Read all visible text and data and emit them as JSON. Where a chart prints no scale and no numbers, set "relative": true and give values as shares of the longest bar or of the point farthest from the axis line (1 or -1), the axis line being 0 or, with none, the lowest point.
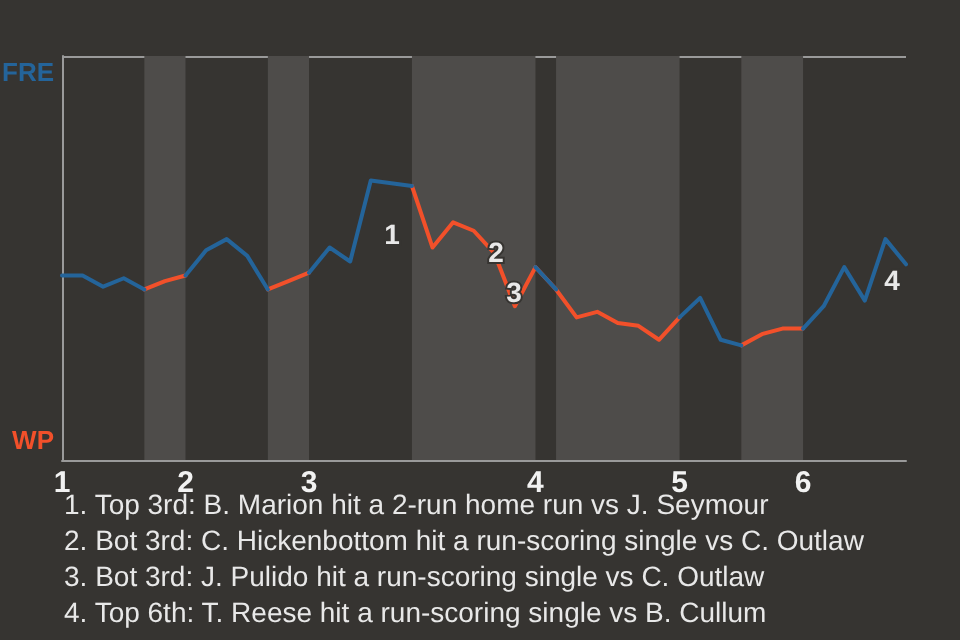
{
  "chart_data": {
    "type": "line",
    "relative": true,
    "categories": [
      "1",
      null,
      null,
      null,
      null,
      null,
      "2",
      null,
      null,
      null,
      null,
      null,
      "3",
      null,
      null,
      null,
      null,
      null,
      null,
      null,
      null,
      null,
      null,
      "4",
      null,
      null,
      null,
      null,
      null,
      null,
      "5",
      null,
      null,
      null,
      null,
      null,
      "6",
      null,
      null,
      null,
      null,
      null
    ],
    "series": [
      {
        "color": "#24649a",
        "values": [
          0.66,
          0.66,
          0.62,
          0.65,
          0.61,
          null,
          0.66,
          0.75,
          0.79,
          0.73,
          0.61,
          null,
          0.67,
          0.76,
          0.71,
          1,
          0.99,
          0.98,
          null,
          null,
          null,
          null,
          null,
          0.69,
          0.61,
          null,
          null,
          null,
          null,
          null,
          0.51,
          0.58,
          0.43,
          0.41,
          null,
          null,
          0.47,
          0.55,
          0.69,
          0.57,
          0.79,
          0.7
        ]
      },
      {
        "color": "#f2502a",
        "values": [
          null,
          null,
          null,
          null,
          0.61,
          0.64,
          0.66,
          null,
          null,
          null,
          0.61,
          0.64,
          0.67,
          null,
          null,
          null,
          null,
          0.98,
          0.76,
          0.85,
          0.82,
          0.74,
          0.55,
          0.69,
          0.61,
          0.51,
          0.53,
          0.49,
          0.48,
          0.43,
          0.51,
          null,
          null,
          0.41,
          0.45,
          0.47,
          0.47,
          null,
          null,
          null,
          null,
          null
        ]
      }
    ],
    "annotations": [
      "FRE",
      "WP",
      "1",
      "2",
      "3",
      "4",
      "1. Top 3rd: B. Marion hit a 2-run home run vs J. Seymour",
      "2. Bot 3rd: C. Hickenbottom hit a run-scoring single vs C. Outlaw",
      "3. Bot 3rd: J. Pulido hit a run-scoring single vs C. Outlaw",
      "4. Top 6th: T. Reese hit a run-scoring single vs B. Cullum"
    ],
    "marker": "none",
    "line_style": "solid"
  }
}
